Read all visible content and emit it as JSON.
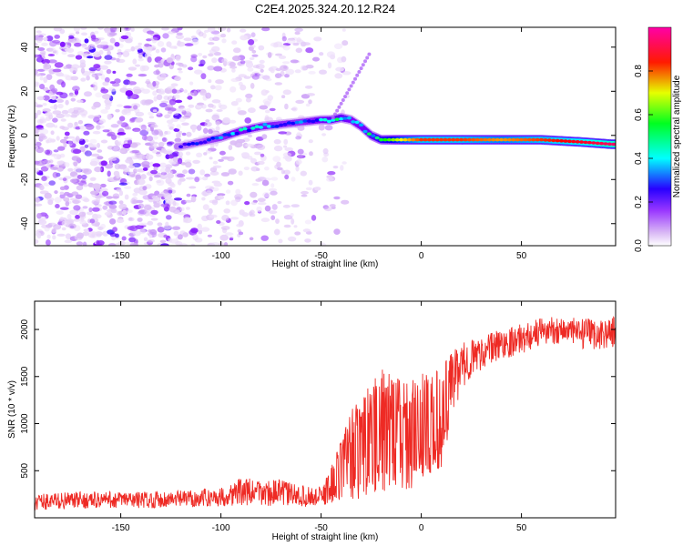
{
  "title": "C2E4.2025.324.20.12.R24",
  "chart_data": [
    {
      "type": "heatmap",
      "name": "spectrogram",
      "xlabel": "Height of straight line (km)",
      "ylabel": "Frequency (Hz)",
      "xlim": [
        -193,
        97
      ],
      "ylim": [
        -50,
        49
      ],
      "xticks": [
        -150,
        -100,
        -50,
        0,
        50
      ],
      "yticks": [
        -40,
        -20,
        0,
        20,
        40
      ],
      "colorbar": {
        "label": "Normalized spectral amplitude",
        "range": [
          0,
          1
        ],
        "ticks": [
          0.0,
          0.2,
          0.4,
          0.6,
          0.8
        ],
        "tick_labels": [
          "0.0",
          "0.2",
          "0.4",
          "0.6",
          "0.8"
        ],
        "colors": [
          "#ffffff",
          "#d9b8f5",
          "#7a00ff",
          "#0000ff",
          "#00ffff",
          "#00ff00",
          "#ffff00",
          "#ff0000",
          "#ff00aa"
        ]
      },
      "signal_track": {
        "x": [
          -120,
          -110,
          -100,
          -90,
          -80,
          -70,
          -60,
          -50,
          -45,
          -40,
          -35,
          -30,
          -25,
          -20,
          -10,
          0,
          10,
          20,
          40,
          60,
          80,
          95
        ],
        "frequency": [
          -5,
          -3,
          -1,
          2,
          4,
          5,
          6,
          7,
          7,
          8,
          7,
          4,
          0,
          -2,
          -2,
          -2,
          -2,
          -2,
          -2,
          -2,
          -3,
          -4
        ],
        "amplitude": [
          0.3,
          0.35,
          0.4,
          0.45,
          0.45,
          0.4,
          0.4,
          0.45,
          0.5,
          0.5,
          0.45,
          0.45,
          0.5,
          0.6,
          0.75,
          0.85,
          0.85,
          0.85,
          0.8,
          0.85,
          0.9,
          0.95
        ]
      },
      "noise_region": {
        "x_start": -193,
        "x_end": -52,
        "amplitude_range": [
          0.05,
          0.35
        ]
      }
    },
    {
      "type": "line",
      "name": "snr",
      "xlabel": "Height of straight line (km)",
      "ylabel": "SNR (10 * v/v)",
      "xlim": [
        -193,
        97
      ],
      "ylim": [
        0,
        2300
      ],
      "xticks": [
        -150,
        -100,
        -50,
        0,
        50
      ],
      "yticks": [
        500,
        1000,
        1500,
        2000
      ],
      "color": "#ee2a24",
      "series": [
        {
          "name": "SNR",
          "x": [
            -193,
            -180,
            -160,
            -140,
            -120,
            -100,
            -90,
            -80,
            -70,
            -60,
            -50,
            -45,
            -40,
            -35,
            -30,
            -25,
            -20,
            -15,
            -10,
            -5,
            0,
            5,
            10,
            15,
            20,
            25,
            30,
            40,
            50,
            60,
            70,
            80,
            90,
            97
          ],
          "y": [
            170,
            180,
            190,
            190,
            200,
            220,
            280,
            260,
            270,
            230,
            220,
            350,
            500,
            650,
            750,
            850,
            950,
            900,
            880,
            900,
            980,
            1000,
            1050,
            1400,
            1600,
            1700,
            1750,
            1850,
            1900,
            1980,
            2000,
            1950,
            1950,
            1980
          ],
          "spread": [
            90,
            90,
            90,
            90,
            90,
            100,
            150,
            140,
            140,
            110,
            110,
            200,
            350,
            500,
            550,
            600,
            650,
            650,
            600,
            600,
            550,
            550,
            550,
            350,
            250,
            200,
            180,
            170,
            160,
            150,
            150,
            160,
            160,
            160
          ]
        }
      ]
    }
  ]
}
